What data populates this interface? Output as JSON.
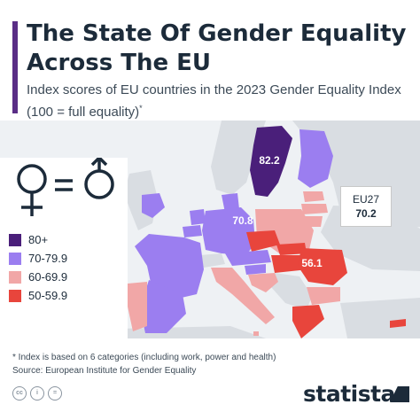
{
  "title": "The State Of Gender Equality Across The EU",
  "subtitle": "Index scores of EU countries in the 2023 Gender Equality Index (100 = full equality)",
  "subtitle_mark": "*",
  "legend": [
    {
      "label": "80+",
      "color": "#4a1f7a"
    },
    {
      "label": "70-79.9",
      "color": "#9b7ef0"
    },
    {
      "label": "60-69.9",
      "color": "#f1a7a7"
    },
    {
      "label": "50-59.9",
      "color": "#e8453c"
    }
  ],
  "eu": {
    "name": "EU27",
    "value": "70.2"
  },
  "highlighted": [
    {
      "country": "Sweden",
      "value": "82.2",
      "bracket": "80+"
    },
    {
      "country": "Germany",
      "value": "70.8",
      "bracket": "70-79.9"
    },
    {
      "country": "Romania",
      "value": "56.1",
      "bracket": "50-59.9"
    }
  ],
  "footnote": "* Index is based on 6 categories (including work, power and health)",
  "source": "Source: European Institute for Gender Equality",
  "brand": "statista",
  "license_icons": [
    "cc",
    "i",
    "="
  ],
  "icons": {
    "symbol": "female-equals-male-icon",
    "brand": "statista-logo-icon"
  },
  "colors": {
    "title_bar": "#5a2e86",
    "text": "#1c2b3a",
    "water": "#eef1f4",
    "non_eu": "#d9dde2"
  }
}
